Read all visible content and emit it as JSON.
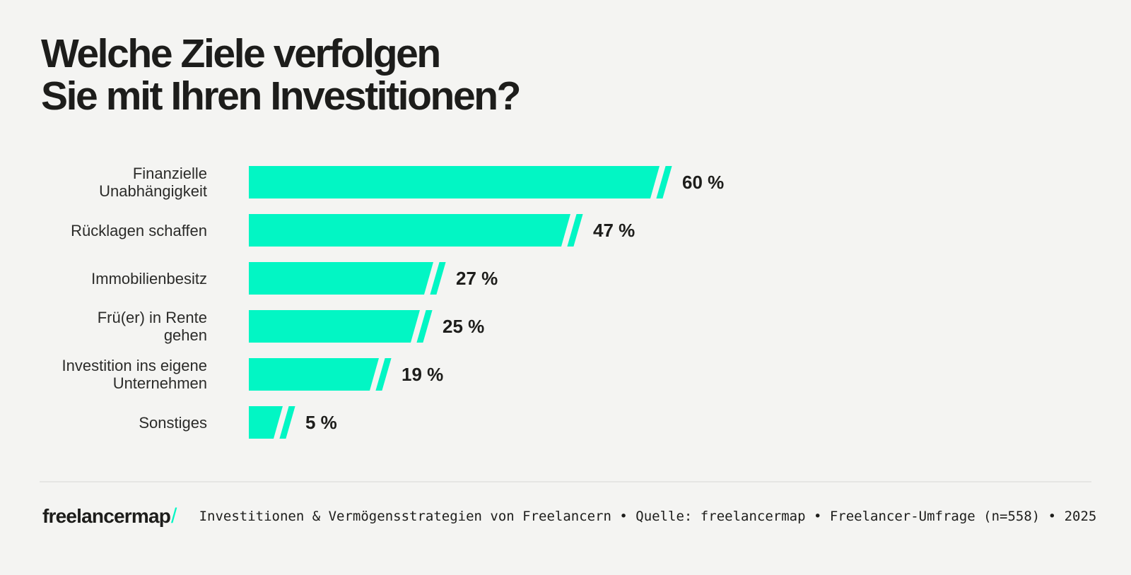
{
  "page": {
    "background_color": "#f4f4f2",
    "accent_color": "#02f6c4",
    "text_color": "#1d1d1b"
  },
  "title": {
    "full": "Welche Ziele verfolgen Sie mit Ihren Investitionen?",
    "lines": [
      "Welche Ziele verfolgen",
      "Sie mit Ihren Investitionen?"
    ]
  },
  "chart_data": {
    "type": "bar",
    "orientation": "horizontal",
    "title": "Welche Ziele verfolgen Sie mit Ihren Investitionen?",
    "unit": "%",
    "categories": [
      "Finanzielle Unabhängigkeit",
      "Rücklagen schaffen",
      "Immobilienbesitz",
      "Frü(er) in Rente gehen",
      "Investition ins eigene Unternehmen",
      "Sonstiges"
    ],
    "category_lines": [
      [
        "Finanzielle",
        "Unabhängigkeit"
      ],
      [
        "Rücklagen schaffen"
      ],
      [
        "Immobilienbesitz"
      ],
      [
        "Frü(er) in Rente",
        "gehen"
      ],
      [
        "Investition ins eigene",
        "Unternehmen"
      ],
      [
        "Sonstiges"
      ]
    ],
    "values": [
      60,
      47,
      27,
      25,
      19,
      5
    ],
    "value_labels": [
      "60 %",
      "47 %",
      "27 %",
      "25 %",
      "19 %",
      "5 %"
    ],
    "xlim": [
      0,
      60
    ],
    "bar_color": "#02f6c4",
    "grid": false,
    "legend": false
  },
  "footer": {
    "logo_text": "freelancermap",
    "logo_slash": "/",
    "source_line": "Investitionen & Vermögensstrategien von Freelancern • Quelle: freelancermap • Freelancer-Umfrage (n=558) • 2025"
  }
}
